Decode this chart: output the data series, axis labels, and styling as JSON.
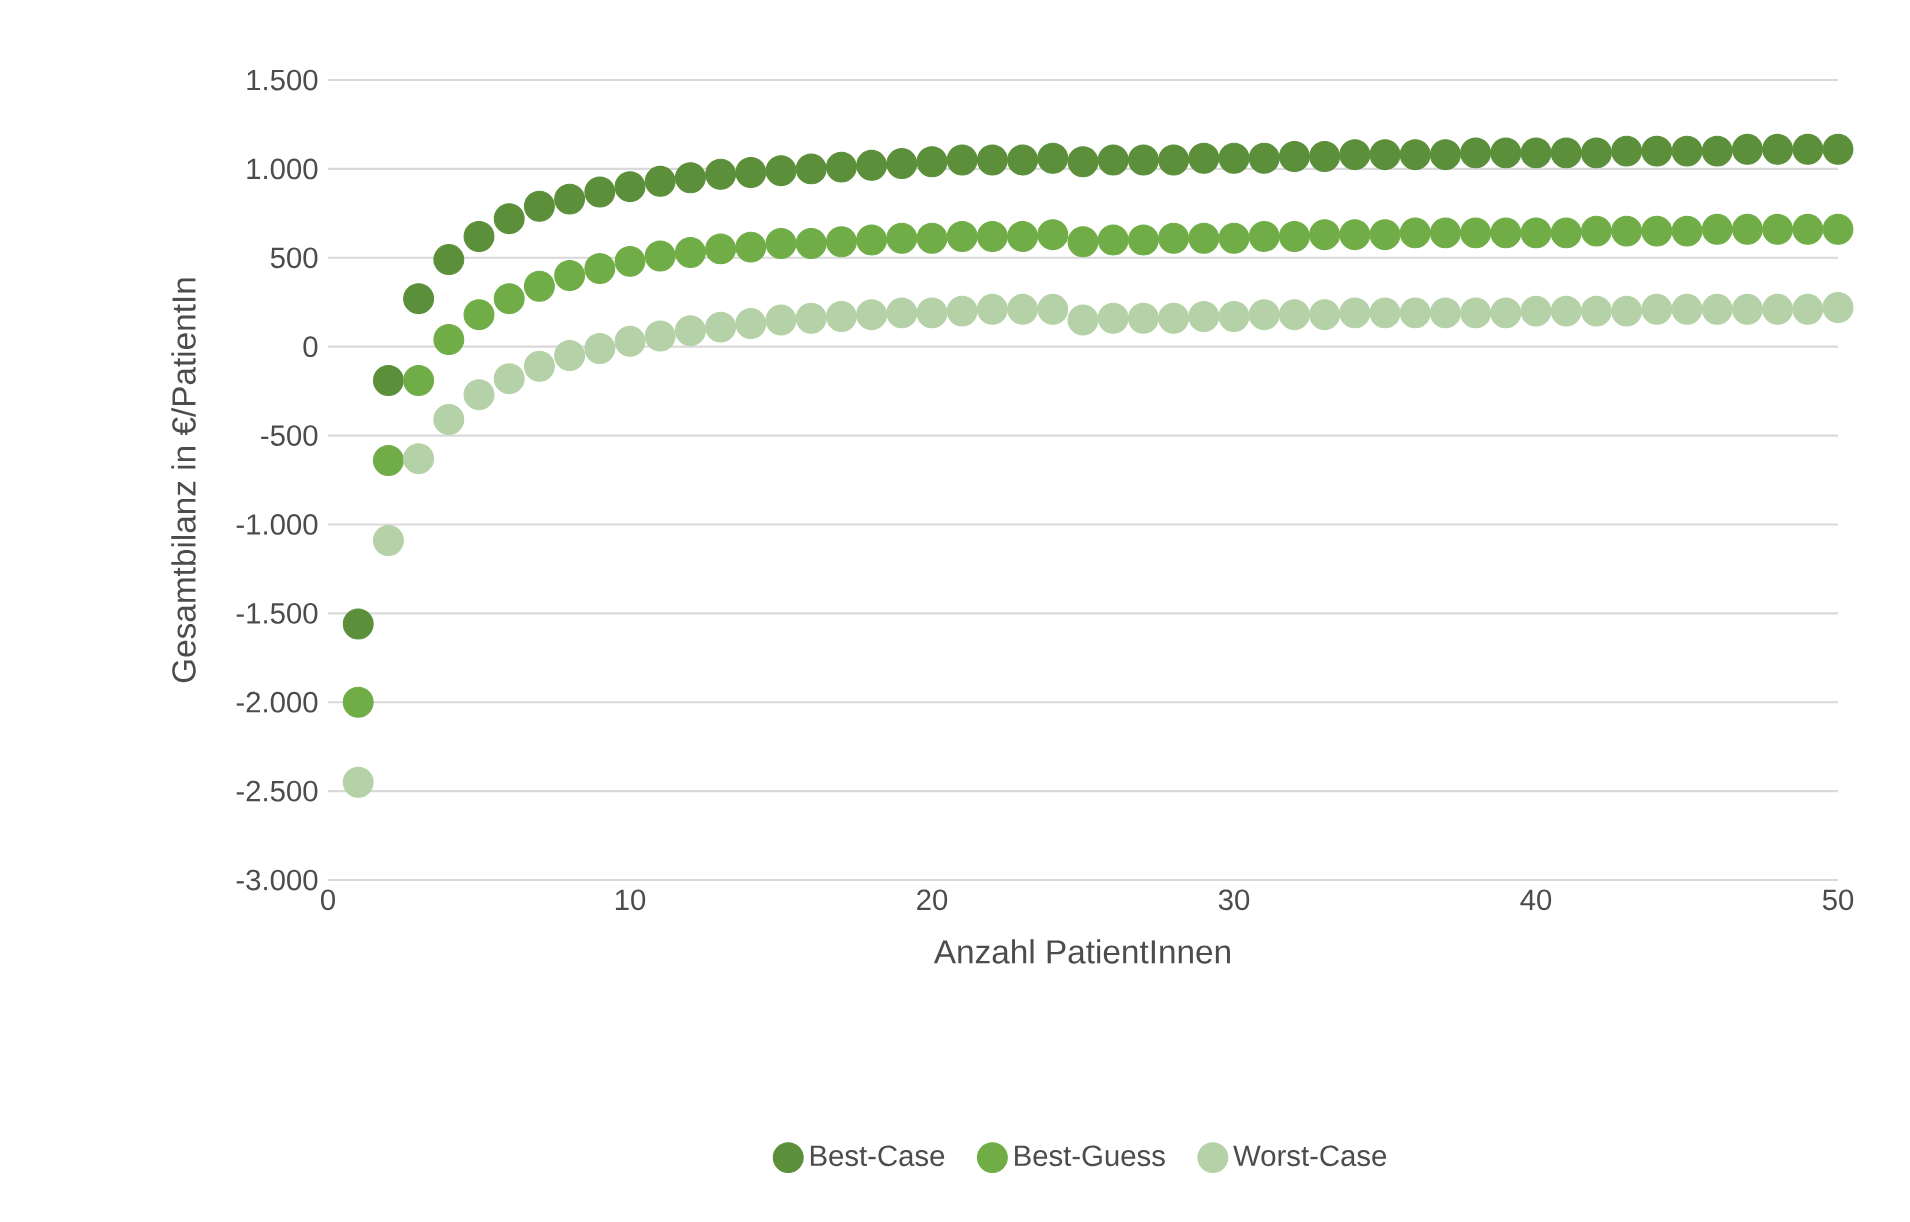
{
  "chart_data": {
    "type": "scatter",
    "xlabel": "Anzahl PatientInnen",
    "ylabel": "Gesamtbilanz in €/PatientIn",
    "x": [
      1,
      2,
      3,
      4,
      5,
      6,
      7,
      8,
      9,
      10,
      11,
      12,
      13,
      14,
      15,
      16,
      17,
      18,
      19,
      20,
      21,
      22,
      23,
      24,
      25,
      26,
      27,
      28,
      29,
      30,
      31,
      32,
      33,
      34,
      35,
      36,
      37,
      38,
      39,
      40,
      41,
      42,
      43,
      44,
      45,
      46,
      47,
      48,
      49,
      50
    ],
    "series": [
      {
        "name": "Best-Case",
        "color": "#5b8f3a",
        "values": [
          -1560,
          -190,
          270,
          490,
          620,
          720,
          790,
          830,
          870,
          900,
          930,
          950,
          970,
          980,
          990,
          1000,
          1010,
          1020,
          1030,
          1040,
          1050,
          1050,
          1050,
          1060,
          1040,
          1050,
          1050,
          1050,
          1060,
          1060,
          1060,
          1070,
          1070,
          1080,
          1080,
          1080,
          1080,
          1090,
          1090,
          1090,
          1090,
          1090,
          1100,
          1100,
          1100,
          1100,
          1110,
          1110,
          1110,
          1110
        ]
      },
      {
        "name": "Best-Guess",
        "color": "#70ad47",
        "values": [
          -2000,
          -640,
          -190,
          40,
          180,
          270,
          340,
          400,
          440,
          480,
          510,
          530,
          550,
          560,
          580,
          580,
          590,
          600,
          610,
          610,
          620,
          620,
          620,
          630,
          590,
          600,
          600,
          610,
          610,
          610,
          620,
          620,
          630,
          630,
          630,
          640,
          640,
          640,
          640,
          640,
          640,
          650,
          650,
          650,
          650,
          660,
          660,
          660,
          660,
          660
        ]
      },
      {
        "name": "Worst-Case",
        "color": "#b5d1a7",
        "values": [
          -2450,
          -1090,
          -630,
          -410,
          -270,
          -180,
          -110,
          -50,
          -10,
          30,
          60,
          90,
          110,
          130,
          150,
          160,
          170,
          180,
          190,
          190,
          200,
          210,
          210,
          210,
          150,
          160,
          160,
          160,
          170,
          170,
          180,
          180,
          180,
          190,
          190,
          190,
          190,
          190,
          190,
          200,
          200,
          200,
          200,
          210,
          210,
          210,
          210,
          210,
          210,
          220
        ]
      }
    ],
    "xlim": [
      0,
      50
    ],
    "xticks": [
      0,
      10,
      20,
      30,
      40,
      50
    ],
    "ylim": [
      -3000,
      1500
    ],
    "yticks": [
      {
        "value": -3000,
        "label": "-3.000"
      },
      {
        "value": -2500,
        "label": "-2.500"
      },
      {
        "value": -2000,
        "label": "-2.000"
      },
      {
        "value": -1500,
        "label": "-1.500"
      },
      {
        "value": -1000,
        "label": "-1.000"
      },
      {
        "value": -500,
        "label": "-500"
      },
      {
        "value": 0,
        "label": "0"
      },
      {
        "value": 500,
        "label": "500"
      },
      {
        "value": 1000,
        "label": "1.000"
      },
      {
        "value": 1500,
        "label": "1.500"
      }
    ],
    "grid": "y",
    "legend": "bottom",
    "marker": "circle"
  }
}
